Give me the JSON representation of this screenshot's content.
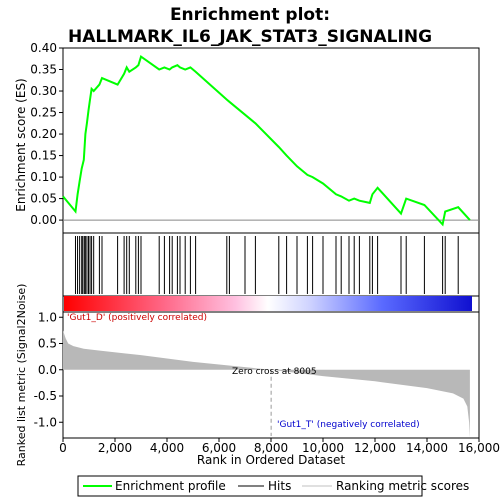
{
  "chart_data": {
    "type": "line",
    "title_lines": [
      "Enrichment plot:",
      "HALLMARK_IL6_JAK_STAT3_SIGNALING"
    ],
    "top_panel": {
      "ylabel": "Enrichment score (ES)",
      "ylim": [
        -0.03,
        0.4
      ],
      "yticks": [
        "0.00",
        "0.05",
        "0.10",
        "0.15",
        "0.20",
        "0.25",
        "0.30",
        "0.35",
        "0.40"
      ],
      "series": {
        "name": "Enrichment profile",
        "color": "#00ff00",
        "x": [
          0,
          480,
          560,
          640,
          720,
          800,
          860,
          920,
          980,
          1040,
          1100,
          1180,
          1400,
          1500,
          2100,
          2350,
          2450,
          2550,
          2800,
          2900,
          3000,
          3700,
          3900,
          4100,
          4200,
          4400,
          4500,
          4700,
          4900,
          5100,
          6300,
          6400,
          7000,
          7400,
          8300,
          8600,
          9000,
          9400,
          9600,
          10000,
          10500,
          10700,
          11000,
          11200,
          11400,
          11800,
          11900,
          12100,
          13000,
          13200,
          13900,
          14600,
          14700,
          15200,
          15650
        ],
        "y": [
          0.055,
          0.02,
          0.06,
          0.09,
          0.12,
          0.14,
          0.2,
          0.225,
          0.255,
          0.28,
          0.305,
          0.3,
          0.315,
          0.33,
          0.315,
          0.34,
          0.355,
          0.345,
          0.355,
          0.36,
          0.38,
          0.35,
          0.355,
          0.35,
          0.355,
          0.36,
          0.355,
          0.35,
          0.355,
          0.345,
          0.28,
          0.275,
          0.245,
          0.225,
          0.17,
          0.15,
          0.125,
          0.105,
          0.1,
          0.085,
          0.06,
          0.055,
          0.045,
          0.05,
          0.045,
          0.04,
          0.06,
          0.075,
          0.015,
          0.05,
          0.035,
          -0.01,
          0.02,
          0.03,
          0.0
        ]
      },
      "hits": [
        480,
        560,
        640,
        720,
        760,
        820,
        860,
        920,
        980,
        1040,
        1100,
        1180,
        1400,
        1500,
        2100,
        2350,
        2450,
        2550,
        2800,
        2900,
        3000,
        3700,
        3900,
        4100,
        4200,
        4400,
        4500,
        4700,
        4900,
        5100,
        6300,
        6400,
        7000,
        7400,
        8300,
        8600,
        9000,
        9400,
        9600,
        10000,
        10500,
        10700,
        11000,
        11200,
        11400,
        11800,
        11900,
        12100,
        13000,
        13200,
        13900,
        14600,
        14700,
        15200
      ]
    },
    "bottom_panel": {
      "ylabel": "Ranked list metric (Signal2Noise)",
      "ylim": [
        -1.3,
        1.1
      ],
      "yticks": [
        "-1.0",
        "-0.5",
        "0.0",
        "0.5",
        "1.0"
      ],
      "metric_x": [
        0,
        100,
        200,
        400,
        800,
        1500,
        3000,
        5000,
        8005,
        10000,
        12000,
        14000,
        15000,
        15400,
        15550,
        15620,
        15650
      ],
      "metric_y": [
        0.75,
        0.6,
        0.5,
        0.45,
        0.4,
        0.36,
        0.28,
        0.15,
        0.0,
        -0.12,
        -0.22,
        -0.35,
        -0.45,
        -0.55,
        -0.7,
        -1.0,
        -1.3
      ],
      "annotations": {
        "positive": "'Gut1_D' (positively correlated)",
        "zero_cross": "Zero cross at 8005",
        "negative": "'Gut1_T' (negatively correlated)"
      }
    },
    "xlabel": "Rank in Ordered Dataset",
    "xlim": [
      0,
      16000
    ],
    "xticks": [
      "0",
      "2,000",
      "4,000",
      "6,000",
      "8,000",
      "10,000",
      "12,000",
      "14,000",
      "16,000"
    ],
    "legend": {
      "placement": "bottom",
      "entries": [
        {
          "label": "Enrichment profile",
          "color": "#00ff00"
        },
        {
          "label": "Hits",
          "color": "#000000"
        },
        {
          "label": "Ranking metric scores",
          "color": "#c0c0c0"
        }
      ]
    }
  }
}
